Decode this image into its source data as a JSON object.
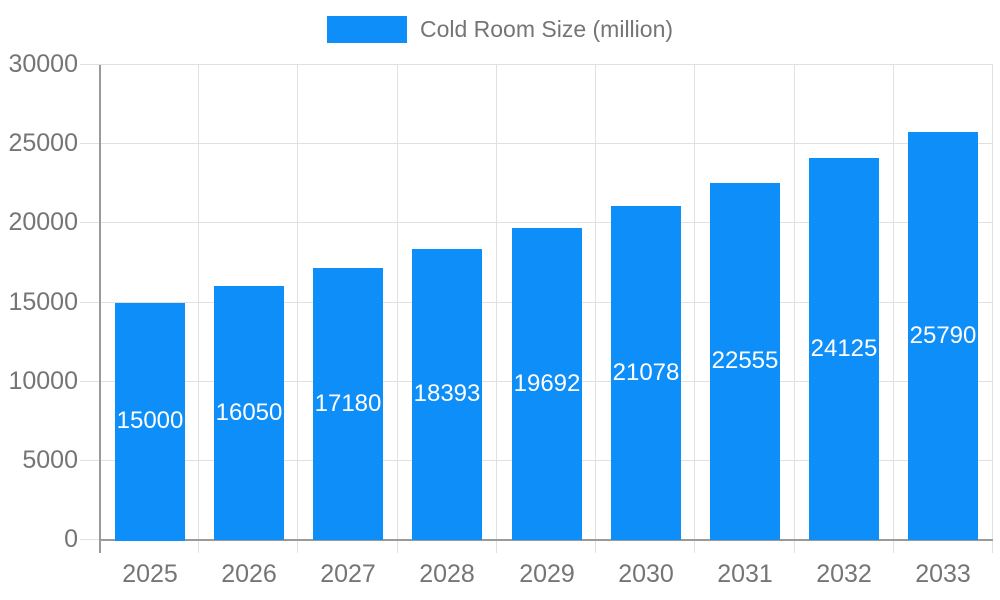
{
  "legend": {
    "label": "Cold Room Size (million)"
  },
  "chart_data": {
    "type": "bar",
    "title": "",
    "series_name": "Cold Room Size (million)",
    "categories": [
      "2025",
      "2026",
      "2027",
      "2028",
      "2029",
      "2030",
      "2031",
      "2032",
      "2033"
    ],
    "values": [
      15000,
      16050,
      17180,
      18393,
      19692,
      21078,
      22555,
      24125,
      25790
    ],
    "data_labels": [
      "15000",
      "16050",
      "17180",
      "18393",
      "19692",
      "21078",
      "22555",
      "24125",
      "25790"
    ],
    "xlabel": "",
    "ylabel": "",
    "ylim": [
      0,
      30000
    ],
    "y_ticks": [
      0,
      5000,
      10000,
      15000,
      20000,
      25000,
      30000
    ],
    "grid": true,
    "legend_position": "top-center",
    "colors": {
      "bar": "#0d8ef8",
      "data_label_text": "#ffffff",
      "axis_text": "#757575",
      "grid_line": "#e0e0e0",
      "axis_line": "#9a9a9a"
    }
  }
}
